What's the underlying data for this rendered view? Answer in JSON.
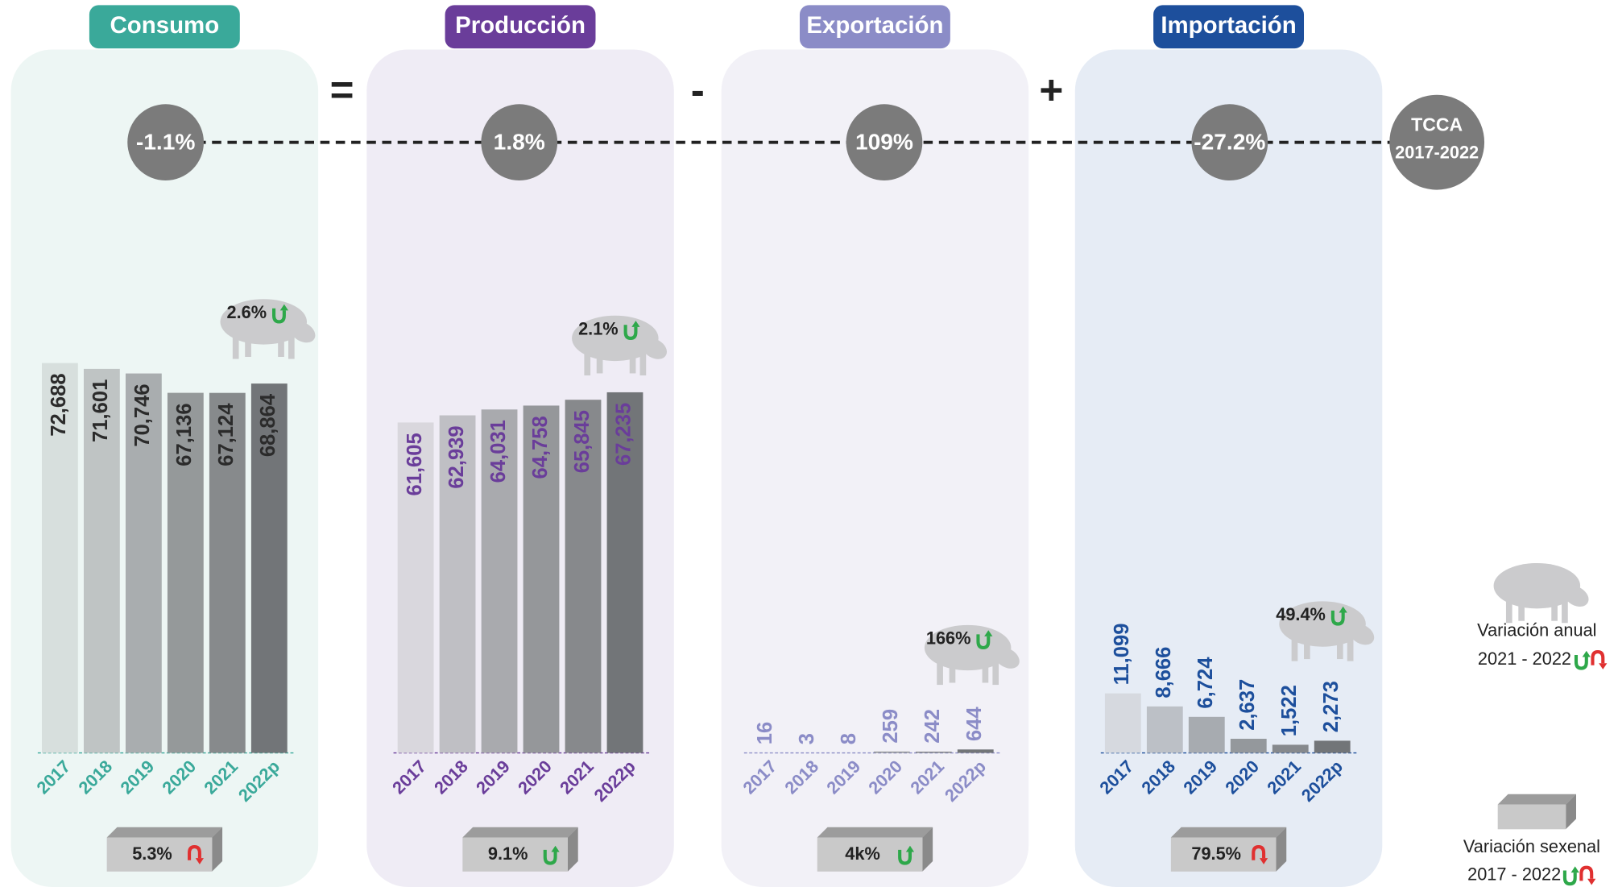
{
  "chart_data": [
    {
      "type": "bar",
      "title": "Consumo",
      "color": "#3aa99a",
      "panel_color": "#edf6f4",
      "value_label_color": "#2b2b2b",
      "categories": [
        "2017",
        "2018",
        "2019",
        "2020",
        "2021",
        "2022p"
      ],
      "values": [
        72688,
        71601,
        70746,
        67136,
        67124,
        68864
      ],
      "value_labels": [
        "72,688",
        "71,601",
        "70,746",
        "67,136",
        "67,124",
        "68,864"
      ],
      "colors": [
        "#d7dfdd",
        "#bfc4c4",
        "#a9adaf",
        "#95999a",
        "#878a8c",
        "#727578"
      ],
      "tcca": {
        "value": -1.1,
        "label": "-1.1%"
      },
      "annual_variation": {
        "value": 2.6,
        "label": "2.6%",
        "direction": "up"
      },
      "sexennial_variation": {
        "value": 5.3,
        "label": "5.3%",
        "direction": "down"
      }
    },
    {
      "type": "bar",
      "title": "Producción",
      "color": "#6a3d9a",
      "panel_color": "#efecf5",
      "value_label_color": "#6a3d9a",
      "categories": [
        "2017",
        "2018",
        "2019",
        "2020",
        "2021",
        "2022p"
      ],
      "values": [
        61605,
        62939,
        64031,
        64758,
        65845,
        67235
      ],
      "value_labels": [
        "61,605",
        "62,939",
        "64,031",
        "64,758",
        "65,845",
        "67,235"
      ],
      "colors": [
        "#d9d7dd",
        "#bfbfc4",
        "#a9aaae",
        "#95979a",
        "#87898c",
        "#727578"
      ],
      "tcca": {
        "value": 1.8,
        "label": "1.8%"
      },
      "annual_variation": {
        "value": 2.1,
        "label": "2.1%",
        "direction": "up"
      },
      "sexennial_variation": {
        "value": 9.1,
        "label": "9.1%",
        "direction": "up"
      }
    },
    {
      "type": "bar",
      "title": "Exportación",
      "color": "#8b8cc7",
      "panel_color": "#f2f1f7",
      "value_label_color": "#8b8cc7",
      "categories": [
        "2017",
        "2018",
        "2019",
        "2020",
        "2021",
        "2022p"
      ],
      "values": [
        16,
        3,
        8,
        259,
        242,
        644
      ],
      "colors": [
        "#d9d8de",
        "#bfbfc4",
        "#a9aaae",
        "#95979a",
        "#87898c",
        "#727578"
      ],
      "tcca": {
        "value": 109,
        "label": "109%"
      },
      "annual_variation": {
        "value": 166,
        "label": "166%",
        "direction": "up"
      },
      "sexennial_variation": {
        "value": 4000,
        "label": "4k%",
        "direction": "up"
      }
    },
    {
      "type": "bar",
      "title": "Importación",
      "color": "#1d4f9c",
      "panel_color": "#e6ecf5",
      "value_label_color": "#1d4f9c",
      "categories": [
        "2017",
        "2018",
        "2019",
        "2020",
        "2021",
        "2022p"
      ],
      "values": [
        11099,
        8666,
        6724,
        2637,
        1522,
        2273
      ],
      "value_labels": [
        "11,099",
        "8,666",
        "6,724",
        "2,637",
        "1,522",
        "2,273"
      ],
      "colors": [
        "#d6d9df",
        "#bcc0c6",
        "#a7abb0",
        "#94989c",
        "#86898d",
        "#727578"
      ],
      "tcca": {
        "value": -27.2,
        "label": "-27.2%"
      },
      "annual_variation": {
        "value": 49.4,
        "label": "49.4%",
        "direction": "up"
      },
      "sexennial_variation": {
        "value": 79.5,
        "label": "79.5%",
        "direction": "down"
      }
    }
  ],
  "operators": [
    "=",
    "-",
    "+"
  ],
  "tcca_legend": [
    "TCCA",
    "2017-2022"
  ],
  "legend": {
    "annual": {
      "label": "Variación anual",
      "period": "2021 - 2022"
    },
    "sexennial": {
      "label": "Variación sexenal",
      "period": "2017 - 2022"
    }
  }
}
